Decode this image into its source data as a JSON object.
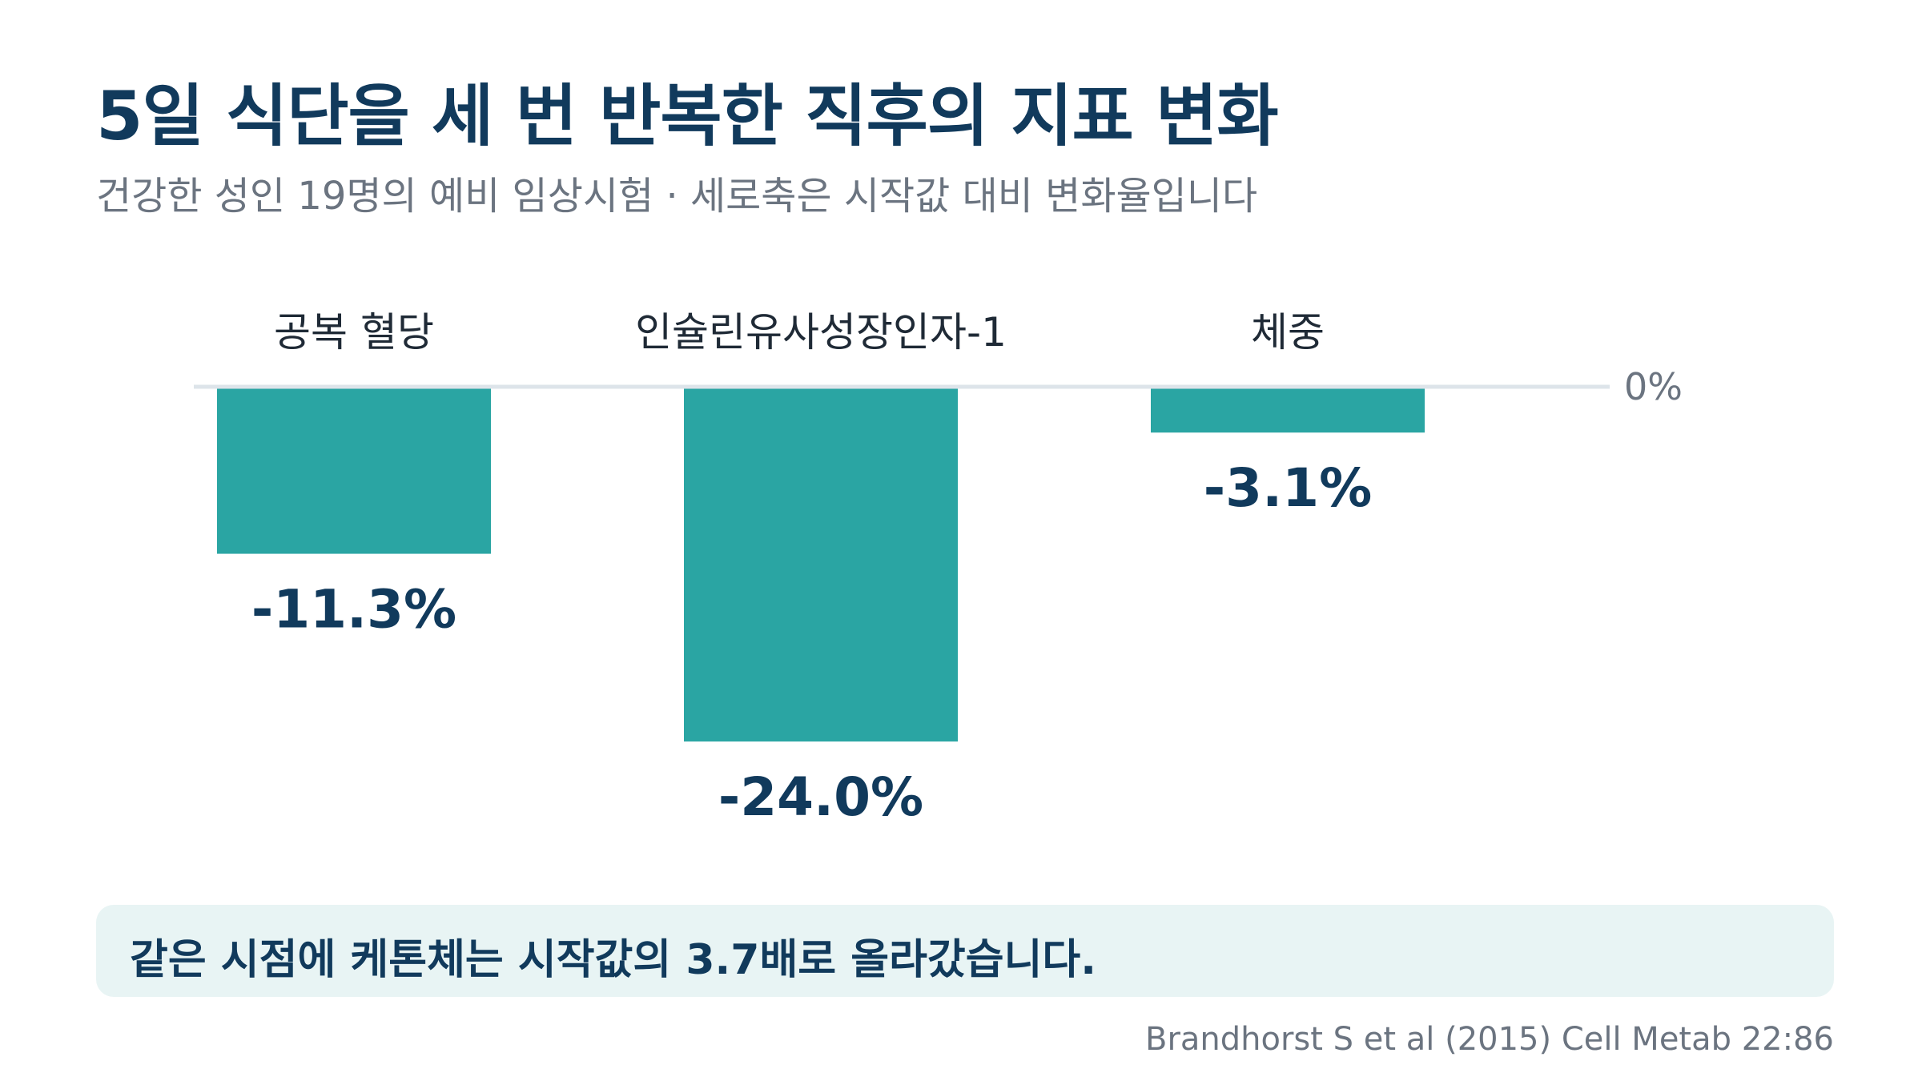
{
  "header": {
    "title": "5일 식단을 세 번 반복한 직후의 지표 변화",
    "subtitle": "건강한 성인 19명의 예비 임상시험 · 세로축은 시작값 대비 변화율입니다"
  },
  "chart_data": {
    "type": "bar",
    "categories": [
      "공복 혈당",
      "인슐린유사성장인자-1",
      "체중"
    ],
    "values": [
      -11.3,
      -24.0,
      -3.1
    ],
    "value_labels": [
      "-11.3%",
      "-24.0%",
      "-3.1%"
    ],
    "baseline_label": "0%",
    "ylim": [
      -24.0,
      0
    ],
    "bar_color": "#2aa5a3",
    "baseline_color": "#dde4ea",
    "category_label_color": "#1f2a36",
    "value_label_color": "#113a5c",
    "grid": false,
    "legend": "none"
  },
  "callout": {
    "text": "같은 시점에 케톤체는 시작값의 3.7배로 올라갔습니다."
  },
  "footer": {
    "source": "Brandhorst S et al (2015) Cell Metab 22:86"
  },
  "colors": {
    "title": "#113a5c",
    "muted": "#6b7480",
    "callout_bg": "#e8f4f4"
  }
}
